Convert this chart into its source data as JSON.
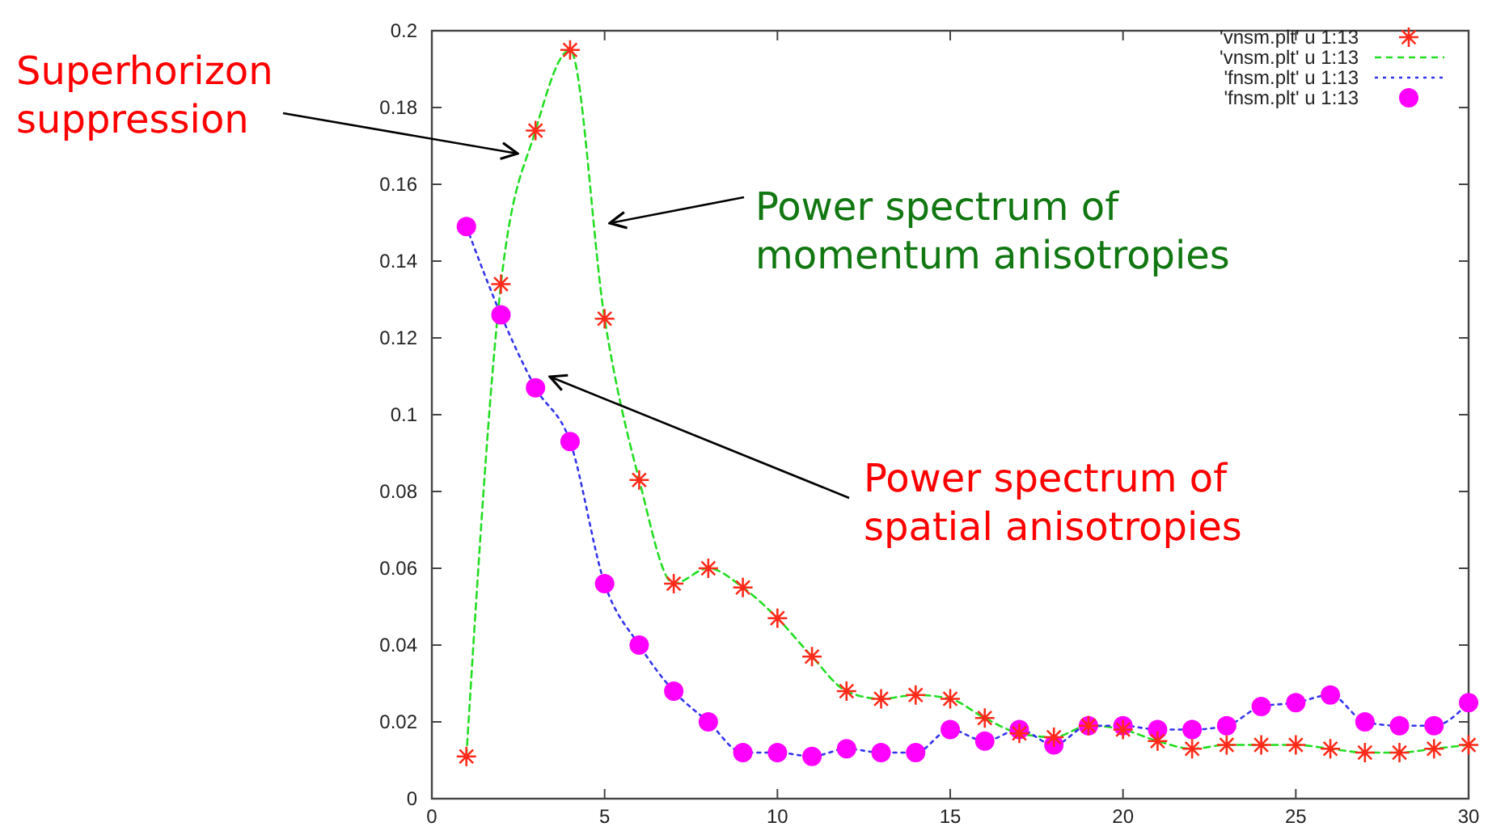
{
  "chart_data": {
    "type": "line",
    "x": [
      1,
      2,
      3,
      4,
      5,
      6,
      7,
      8,
      9,
      10,
      11,
      12,
      13,
      14,
      15,
      16,
      17,
      18,
      19,
      20,
      21,
      22,
      23,
      24,
      25,
      26,
      27,
      28,
      29,
      30
    ],
    "series": [
      {
        "name": "'vnsm.plt' u 1:13",
        "type": "scatter",
        "marker": "cross",
        "color": "#ff2a1a",
        "values": [
          0.011,
          0.134,
          0.174,
          0.195,
          0.125,
          0.083,
          0.056,
          0.06,
          0.055,
          0.047,
          0.037,
          0.028,
          0.026,
          0.027,
          0.026,
          0.021,
          0.017,
          0.016,
          0.019,
          0.018,
          0.015,
          0.013,
          0.014,
          0.014,
          0.014,
          0.013,
          0.012,
          0.012,
          0.013,
          0.014
        ]
      },
      {
        "name": "'vnsm.plt' u 1:13",
        "type": "line",
        "marker": "none",
        "line_style": "dashed",
        "color": "#22dd22",
        "values": [
          0.011,
          0.134,
          0.174,
          0.195,
          0.125,
          0.083,
          0.056,
          0.06,
          0.055,
          0.047,
          0.037,
          0.028,
          0.026,
          0.027,
          0.026,
          0.021,
          0.017,
          0.016,
          0.019,
          0.018,
          0.015,
          0.013,
          0.014,
          0.014,
          0.014,
          0.013,
          0.012,
          0.012,
          0.013,
          0.014
        ]
      },
      {
        "name": "'fnsm.plt' u 1:13",
        "type": "line",
        "marker": "none",
        "line_style": "dotted",
        "color": "#3333ee",
        "values": [
          0.149,
          0.126,
          0.107,
          0.093,
          0.056,
          0.04,
          0.028,
          0.02,
          0.012,
          0.012,
          0.011,
          0.013,
          0.012,
          0.012,
          0.018,
          0.015,
          0.018,
          0.014,
          0.019,
          0.019,
          0.018,
          0.018,
          0.019,
          0.024,
          0.025,
          0.027,
          0.02,
          0.019,
          0.019,
          0.025
        ]
      },
      {
        "name": "'fnsm.plt' u 1:13",
        "type": "scatter",
        "marker": "circle",
        "color": "#ff00ff",
        "values": [
          0.149,
          0.126,
          0.107,
          0.093,
          0.056,
          0.04,
          0.028,
          0.02,
          0.012,
          0.012,
          0.011,
          0.013,
          0.012,
          0.012,
          0.018,
          0.015,
          0.018,
          0.014,
          0.019,
          0.019,
          0.018,
          0.018,
          0.019,
          0.024,
          0.025,
          0.027,
          0.02,
          0.019,
          0.019,
          0.025
        ]
      }
    ],
    "xlim": [
      0,
      30
    ],
    "xticks": [
      0,
      5,
      10,
      15,
      20,
      25,
      30
    ],
    "ylim": [
      0,
      0.2
    ],
    "yticks": [
      0,
      0.02,
      0.04,
      0.06,
      0.08,
      0.1,
      0.12,
      0.14,
      0.16,
      0.18,
      0.2
    ],
    "grid": false,
    "legend": "top right",
    "annotations": [
      "Superhorizon suppression",
      "Power spectrum of momentum anisotropies",
      "Power spectrum of spatial anisotropies"
    ]
  }
}
